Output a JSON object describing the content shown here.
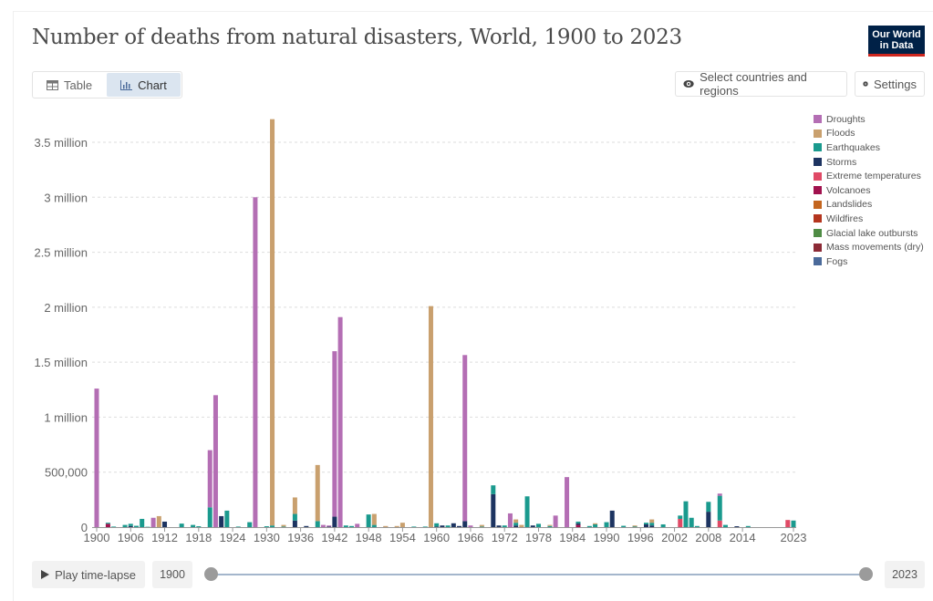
{
  "header": {
    "title": "Number of deaths from natural disasters, World, 1900 to 2023",
    "logo_line1": "Our World",
    "logo_line2": "in Data"
  },
  "tabs": [
    {
      "label": "Table",
      "icon": "table-icon",
      "active": false
    },
    {
      "label": "Chart",
      "icon": "chart-icon",
      "active": true
    }
  ],
  "controls": {
    "select_label": "Select countries and regions",
    "settings_label": "Settings"
  },
  "timeline": {
    "play_label": "Play time-lapse",
    "start_year": "1900",
    "end_year": "2023",
    "start_fraction": 0,
    "end_fraction": 1
  },
  "chart_data": {
    "type": "bar",
    "stacked": true,
    "title": "Number of deaths from natural disasters, World, 1900 to 2023",
    "xlabel": "",
    "ylabel": "",
    "ylim": [
      0,
      3700000
    ],
    "yticks": [
      {
        "value": 0,
        "label": "0"
      },
      {
        "value": 500000,
        "label": "500,000"
      },
      {
        "value": 1000000,
        "label": "1 million"
      },
      {
        "value": 1500000,
        "label": "1.5 million"
      },
      {
        "value": 2000000,
        "label": "2 million"
      },
      {
        "value": 2500000,
        "label": "2.5 million"
      },
      {
        "value": 3000000,
        "label": "3 million"
      },
      {
        "value": 3500000,
        "label": "3.5 million"
      }
    ],
    "xticks": [
      "1900",
      "1906",
      "1912",
      "1918",
      "1924",
      "1930",
      "1936",
      "1942",
      "1948",
      "1954",
      "1960",
      "1966",
      "1972",
      "1978",
      "1984",
      "1990",
      "1996",
      "2002",
      "2008",
      "2014",
      "2023"
    ],
    "grid": true,
    "legend_position": "right",
    "series": [
      {
        "name": "Droughts",
        "color": "#b46eb4"
      },
      {
        "name": "Floods",
        "color": "#c9a06e"
      },
      {
        "name": "Earthquakes",
        "color": "#1a9a8e"
      },
      {
        "name": "Storms",
        "color": "#1d3461"
      },
      {
        "name": "Extreme temperatures",
        "color": "#e04a66"
      },
      {
        "name": "Volcanoes",
        "color": "#a1124e"
      },
      {
        "name": "Landslides",
        "color": "#c4661f"
      },
      {
        "name": "Wildfires",
        "color": "#b4351e"
      },
      {
        "name": "Glacial lake outbursts",
        "color": "#4f8c45"
      },
      {
        "name": "Mass movements (dry)",
        "color": "#8c2a36"
      },
      {
        "name": "Fogs",
        "color": "#4b6a9a"
      }
    ],
    "years": [
      {
        "year": 1900,
        "Droughts": 1260000
      },
      {
        "year": 1902,
        "Volcanoes": 30000,
        "Earthquakes": 10000
      },
      {
        "year": 1903,
        "Earthquakes": 5000
      },
      {
        "year": 1905,
        "Earthquakes": 20000
      },
      {
        "year": 1906,
        "Earthquakes": 20000,
        "Storms": 10000
      },
      {
        "year": 1907,
        "Earthquakes": 12000
      },
      {
        "year": 1908,
        "Earthquakes": 75000
      },
      {
        "year": 1909,
        "Earthquakes": 3000
      },
      {
        "year": 1910,
        "Droughts": 85000
      },
      {
        "year": 1911,
        "Floods": 100000
      },
      {
        "year": 1912,
        "Storms": 50000
      },
      {
        "year": 1915,
        "Earthquakes": 32000
      },
      {
        "year": 1917,
        "Earthquakes": 20000
      },
      {
        "year": 1918,
        "Earthquakes": 8000
      },
      {
        "year": 1920,
        "Earthquakes": 180000,
        "Droughts": 520000
      },
      {
        "year": 1921,
        "Droughts": 1200000
      },
      {
        "year": 1922,
        "Storms": 100000
      },
      {
        "year": 1923,
        "Earthquakes": 150000
      },
      {
        "year": 1925,
        "Earthquakes": 5000
      },
      {
        "year": 1927,
        "Earthquakes": 45000
      },
      {
        "year": 1928,
        "Droughts": 3000000
      },
      {
        "year": 1930,
        "Earthquakes": 8000
      },
      {
        "year": 1931,
        "Earthquakes": 15000,
        "Floods": 3695000
      },
      {
        "year": 1933,
        "Earthquakes": 5000,
        "Floods": 15000
      },
      {
        "year": 1935,
        "Storms": 60000,
        "Earthquakes": 60000,
        "Floods": 150000
      },
      {
        "year": 1937,
        "Storms": 10000
      },
      {
        "year": 1939,
        "Earthquakes": 55000,
        "Floods": 510000
      },
      {
        "year": 1940,
        "Droughts": 20000
      },
      {
        "year": 1941,
        "Storms": 5000,
        "Droughts": 10000
      },
      {
        "year": 1942,
        "Storms": 95000,
        "Droughts": 1505000
      },
      {
        "year": 1943,
        "Droughts": 1910000
      },
      {
        "year": 1944,
        "Earthquakes": 15000
      },
      {
        "year": 1945,
        "Earthquakes": 10000
      },
      {
        "year": 1946,
        "Droughts": 30000
      },
      {
        "year": 1948,
        "Earthquakes": 115000
      },
      {
        "year": 1949,
        "Earthquakes": 20000,
        "Floods": 100000
      },
      {
        "year": 1951,
        "Storms": 5000,
        "Floods": 5000
      },
      {
        "year": 1953,
        "Floods": 10000
      },
      {
        "year": 1954,
        "Floods": 40000
      },
      {
        "year": 1956,
        "Earthquakes": 5000
      },
      {
        "year": 1958,
        "Earthquakes": 5000
      },
      {
        "year": 1959,
        "Floods": 2010000
      },
      {
        "year": 1960,
        "Earthquakes": 30000,
        "Storms": 5000
      },
      {
        "year": 1961,
        "Storms": 15000
      },
      {
        "year": 1962,
        "Earthquakes": 15000
      },
      {
        "year": 1963,
        "Storms": 35000
      },
      {
        "year": 1964,
        "Storms": 10000
      },
      {
        "year": 1965,
        "Storms": 55000,
        "Droughts": 1510000
      },
      {
        "year": 1966,
        "Droughts": 15000
      },
      {
        "year": 1968,
        "Floods": 15000,
        "Earthquakes": 5000
      },
      {
        "year": 1970,
        "Storms": 300000,
        "Earthquakes": 80000
      },
      {
        "year": 1971,
        "Storms": 15000
      },
      {
        "year": 1972,
        "Earthquakes": 15000
      },
      {
        "year": 1973,
        "Droughts": 125000
      },
      {
        "year": 1974,
        "Storms": 15000,
        "Earthquakes": 25000,
        "Floods": 30000
      },
      {
        "year": 1975,
        "Floods": 20000
      },
      {
        "year": 1976,
        "Earthquakes": 280000
      },
      {
        "year": 1977,
        "Storms": 15000
      },
      {
        "year": 1978,
        "Earthquakes": 30000
      },
      {
        "year": 1980,
        "Earthquakes": 10000,
        "Floods": 10000
      },
      {
        "year": 1981,
        "Droughts": 105000
      },
      {
        "year": 1983,
        "Droughts": 455000
      },
      {
        "year": 1985,
        "Volcanoes": 20000,
        "Earthquakes": 15000,
        "Storms": 15000
      },
      {
        "year": 1987,
        "Earthquakes": 10000
      },
      {
        "year": 1988,
        "Earthquakes": 25000,
        "Floods": 10000
      },
      {
        "year": 1990,
        "Earthquakes": 45000
      },
      {
        "year": 1991,
        "Storms": 150000
      },
      {
        "year": 1993,
        "Earthquakes": 12000
      },
      {
        "year": 1995,
        "Earthquakes": 10000,
        "Floods": 5000
      },
      {
        "year": 1997,
        "Storms": 25000,
        "Earthquakes": 15000
      },
      {
        "year": 1998,
        "Storms": 15000,
        "Earthquakes": 25000,
        "Floods": 30000
      },
      {
        "year": 2000,
        "Earthquakes": 25000
      },
      {
        "year": 2003,
        "Extreme temperatures": 75000,
        "Earthquakes": 30000
      },
      {
        "year": 2004,
        "Earthquakes": 235000
      },
      {
        "year": 2005,
        "Earthquakes": 85000
      },
      {
        "year": 2006,
        "Earthquakes": 10000
      },
      {
        "year": 2008,
        "Storms": 140000,
        "Earthquakes": 90000
      },
      {
        "year": 2010,
        "Extreme temperatures": 60000,
        "Earthquakes": 225000,
        "Droughts": 20000
      },
      {
        "year": 2011,
        "Earthquakes": 20000
      },
      {
        "year": 2013,
        "Storms": 8000
      },
      {
        "year": 2015,
        "Earthquakes": 10000
      },
      {
        "year": 2022,
        "Extreme temperatures": 65000
      },
      {
        "year": 2023,
        "Earthquakes": 60000
      }
    ]
  }
}
